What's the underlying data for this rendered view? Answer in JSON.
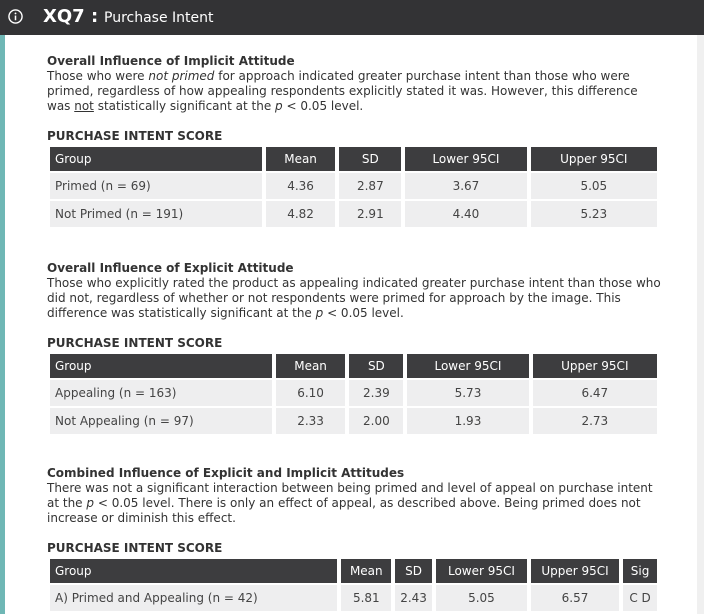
{
  "header": {
    "code": "XQ7 :",
    "title": "Purchase Intent"
  },
  "sections": [
    {
      "title": "Overall Influence of Implicit Attitude",
      "text": [
        "Those who were ",
        "not primed",
        " for approach indicated greater purchase intent than those who were primed, regardless of how appealing respondents explicitly stated it was. However, this difference was ",
        "not",
        " statistically significant at the ",
        "p",
        " < 0.05 level."
      ],
      "table_label": "PURCHASE INTENT SCORE",
      "table": {
        "columns": [
          "Group",
          "Mean",
          "SD",
          "Lower 95CI",
          "Upper 95CI"
        ],
        "rows": [
          [
            "Primed (n = 69)",
            "4.36",
            "2.87",
            "3.67",
            "5.05"
          ],
          [
            "Not Primed (n = 191)",
            "4.82",
            "2.91",
            "4.40",
            "5.23"
          ]
        ]
      }
    },
    {
      "title": "Overall Influence of Explicit Attitude",
      "text": [
        "Those who explicitly rated the product as appealing indicated greater purchase intent than those who did not, regardless of whether or not respondents were primed for approach by the image. This difference was statistically significant at the ",
        "p",
        " < 0.05 level."
      ],
      "table_label": "PURCHASE INTENT SCORE",
      "table": {
        "columns": [
          "Group",
          "Mean",
          "SD",
          "Lower 95CI",
          "Upper 95CI"
        ],
        "rows": [
          [
            "Appealing (n = 163)",
            "6.10",
            "2.39",
            "5.73",
            "6.47"
          ],
          [
            "Not Appealing (n = 97)",
            "2.33",
            "2.00",
            "1.93",
            "2.73"
          ]
        ]
      }
    },
    {
      "title": "Combined Influence of Explicit and Implicit Attitudes",
      "text": [
        "There was not a significant interaction between being primed and level of appeal on purchase intent at the ",
        "p",
        " < 0.05 level. There is only an effect of appeal, as described above. Being primed does not increase or diminish this effect."
      ],
      "table_label": "PURCHASE INTENT SCORE",
      "table": {
        "columns": [
          "Group",
          "Mean",
          "SD",
          "Lower 95CI",
          "Upper 95CI",
          "Sig"
        ],
        "rows": [
          [
            "A) Primed and Appealing (n = 42)",
            "5.81",
            "2.43",
            "5.05",
            "6.57",
            "C D"
          ]
        ]
      }
    }
  ]
}
